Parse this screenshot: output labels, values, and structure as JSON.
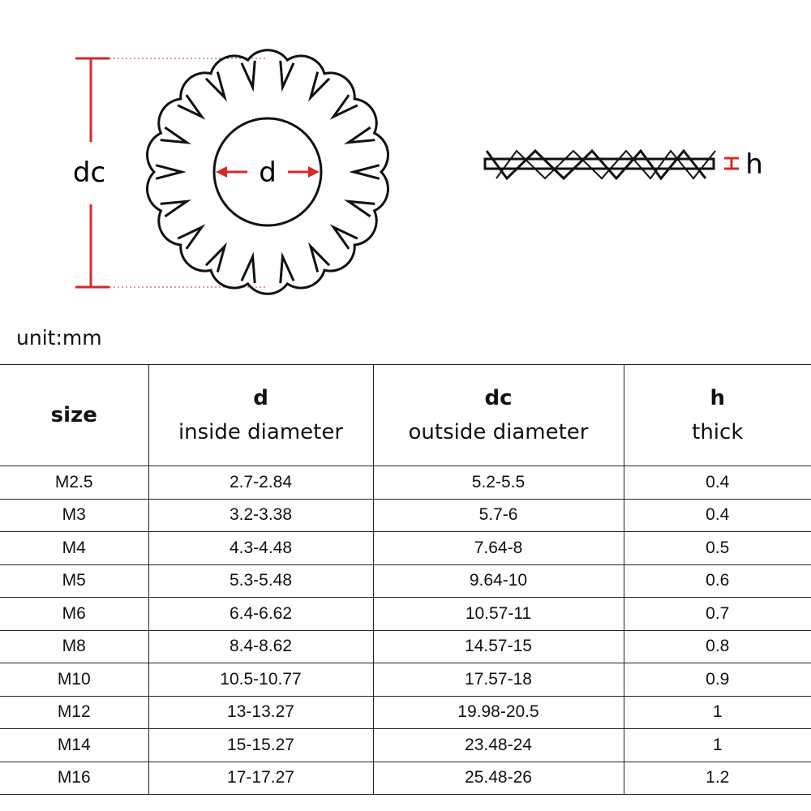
{
  "diagram": {
    "labels": {
      "dc": "dc",
      "d": "d",
      "h": "h"
    },
    "accent_color": "#d42a2a",
    "teeth_count": 18
  },
  "unit_label": "unit:mm",
  "table": {
    "headers": [
      {
        "symbol": "size",
        "desc": ""
      },
      {
        "symbol": "d",
        "desc": "inside diameter"
      },
      {
        "symbol": "dc",
        "desc": "outside diameter"
      },
      {
        "symbol": "h",
        "desc": "thick"
      }
    ],
    "rows": [
      [
        "M2.5",
        "2.7-2.84",
        "5.2-5.5",
        "0.4"
      ],
      [
        "M3",
        "3.2-3.38",
        "5.7-6",
        "0.4"
      ],
      [
        "M4",
        "4.3-4.48",
        "7.64-8",
        "0.5"
      ],
      [
        "M5",
        "5.3-5.48",
        "9.64-10",
        "0.6"
      ],
      [
        "M6",
        "6.4-6.62",
        "10.57-11",
        "0.7"
      ],
      [
        "M8",
        "8.4-8.62",
        "14.57-15",
        "0.8"
      ],
      [
        "M10",
        "10.5-10.77",
        "17.57-18",
        "0.9"
      ],
      [
        "M12",
        "13-13.27",
        "19.98-20.5",
        "1"
      ],
      [
        "M14",
        "15-15.27",
        "23.48-24",
        "1"
      ],
      [
        "M16",
        "17-17.27",
        "25.48-26",
        "1.2"
      ]
    ]
  }
}
